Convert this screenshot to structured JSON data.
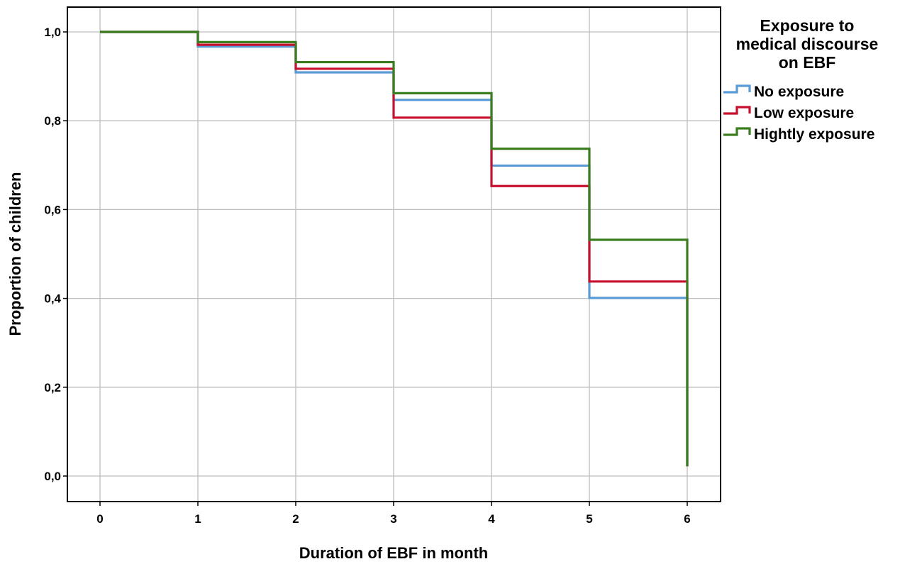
{
  "chart_data": {
    "type": "line",
    "step": true,
    "xlabel": "Duration of EBF in month",
    "ylabel": "Proportion of children",
    "xlim": [
      0,
      6
    ],
    "ylim": [
      0,
      1
    ],
    "x_ticks": [
      "0",
      "1",
      "2",
      "3",
      "4",
      "5",
      "6"
    ],
    "y_ticks": [
      "0,0",
      "0,2",
      "0,4",
      "0,6",
      "0,8",
      "1,0"
    ],
    "grid": true,
    "legend": {
      "title_lines": [
        "Exposure to",
        "medical discourse",
        "on EBF"
      ],
      "position": "right"
    },
    "series": [
      {
        "name": "No exposure",
        "color": "#5b9bd5",
        "x": [
          0,
          1,
          2,
          3,
          4,
          5,
          6
        ],
        "y": [
          1.0,
          0.967,
          0.909,
          0.847,
          0.699,
          0.401,
          0.022
        ]
      },
      {
        "name": "Low exposure",
        "color": "#c8102e",
        "x": [
          0,
          1,
          2,
          3,
          4,
          5,
          6
        ],
        "y": [
          1.0,
          0.971,
          0.917,
          0.807,
          0.653,
          0.438,
          0.022
        ]
      },
      {
        "name": "Hightly exposure",
        "color": "#3a7d1e",
        "x": [
          0,
          1,
          2,
          3,
          4,
          5,
          6
        ],
        "y": [
          1.0,
          0.977,
          0.932,
          0.862,
          0.737,
          0.532,
          0.022
        ]
      }
    ]
  }
}
